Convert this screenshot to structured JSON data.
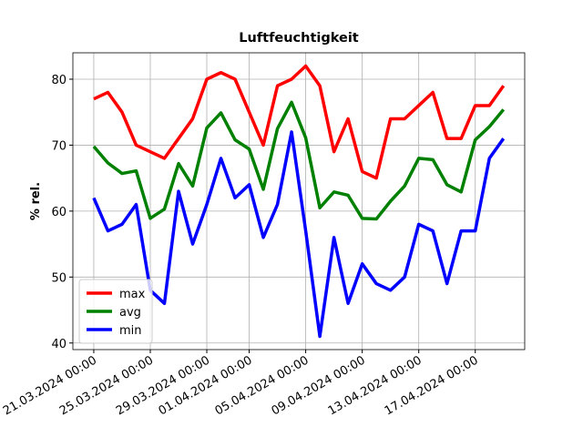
{
  "chart_data": {
    "type": "line",
    "title": "Luftfeuchtigkeit",
    "y_label": "% rel.",
    "x": [
      "2024-03-21",
      "2024-03-22",
      "2024-03-23",
      "2024-03-24",
      "2024-03-25",
      "2024-03-26",
      "2024-03-27",
      "2024-03-28",
      "2024-03-29",
      "2024-03-30",
      "2024-03-31",
      "2024-04-01",
      "2024-04-02",
      "2024-04-03",
      "2024-04-04",
      "2024-04-05",
      "2024-04-06",
      "2024-04-07",
      "2024-04-08",
      "2024-04-09",
      "2024-04-10",
      "2024-04-11",
      "2024-04-12",
      "2024-04-13",
      "2024-04-14",
      "2024-04-15",
      "2024-04-16",
      "2024-04-17",
      "2024-04-18",
      "2024-04-19"
    ],
    "series": [
      {
        "name": "max",
        "color": "#ff0000",
        "values": [
          77,
          78,
          75,
          70,
          69,
          68,
          71,
          74,
          80,
          81,
          80,
          75,
          70,
          79,
          80,
          82,
          79,
          69,
          74,
          66,
          65,
          74,
          74,
          76,
          78,
          71,
          71,
          76,
          76,
          79
        ]
      },
      {
        "name": "avg",
        "color": "#008000",
        "values": [
          69.8,
          67.3,
          65.7,
          66.1,
          58.9,
          60.3,
          67.2,
          63.8,
          72.6,
          74.9,
          70.8,
          69.4,
          63.3,
          72.5,
          76.5,
          71.1,
          60.5,
          62.9,
          62.4,
          58.9,
          58.8,
          61.5,
          63.8,
          68.0,
          67.8,
          64.0,
          62.9,
          70.8,
          72.8,
          75.4
        ]
      },
      {
        "name": "min",
        "color": "#0000ff",
        "values": [
          62,
          57,
          58,
          61,
          48,
          46,
          63,
          55,
          61,
          68,
          62,
          64,
          56,
          61,
          72,
          57,
          41,
          56,
          46,
          52,
          49,
          48,
          50,
          58,
          57,
          49,
          57,
          57,
          68,
          71
        ]
      }
    ],
    "xlim": [
      "2024-03-19T12:30:00Z",
      "2024-04-20T12:00:00Z"
    ],
    "xticks": [
      {
        "value": "2024-03-21",
        "label": "21.03.2024 00:00"
      },
      {
        "value": "2024-03-25",
        "label": "25.03.2024 00:00"
      },
      {
        "value": "2024-03-29",
        "label": "29.03.2024 00:00"
      },
      {
        "value": "2024-04-01",
        "label": "01.04.2024 00:00"
      },
      {
        "value": "2024-04-05",
        "label": "05.04.2024 00:00"
      },
      {
        "value": "2024-04-09",
        "label": "09.04.2024 00:00"
      },
      {
        "value": "2024-04-13",
        "label": "13.04.2024 00:00"
      },
      {
        "value": "2024-04-17",
        "label": "17.04.2024 00:00"
      }
    ],
    "ylim": [
      39,
      84
    ],
    "yticks": [
      40,
      50,
      60,
      70,
      80
    ],
    "grid": true,
    "legend": "lower left"
  }
}
